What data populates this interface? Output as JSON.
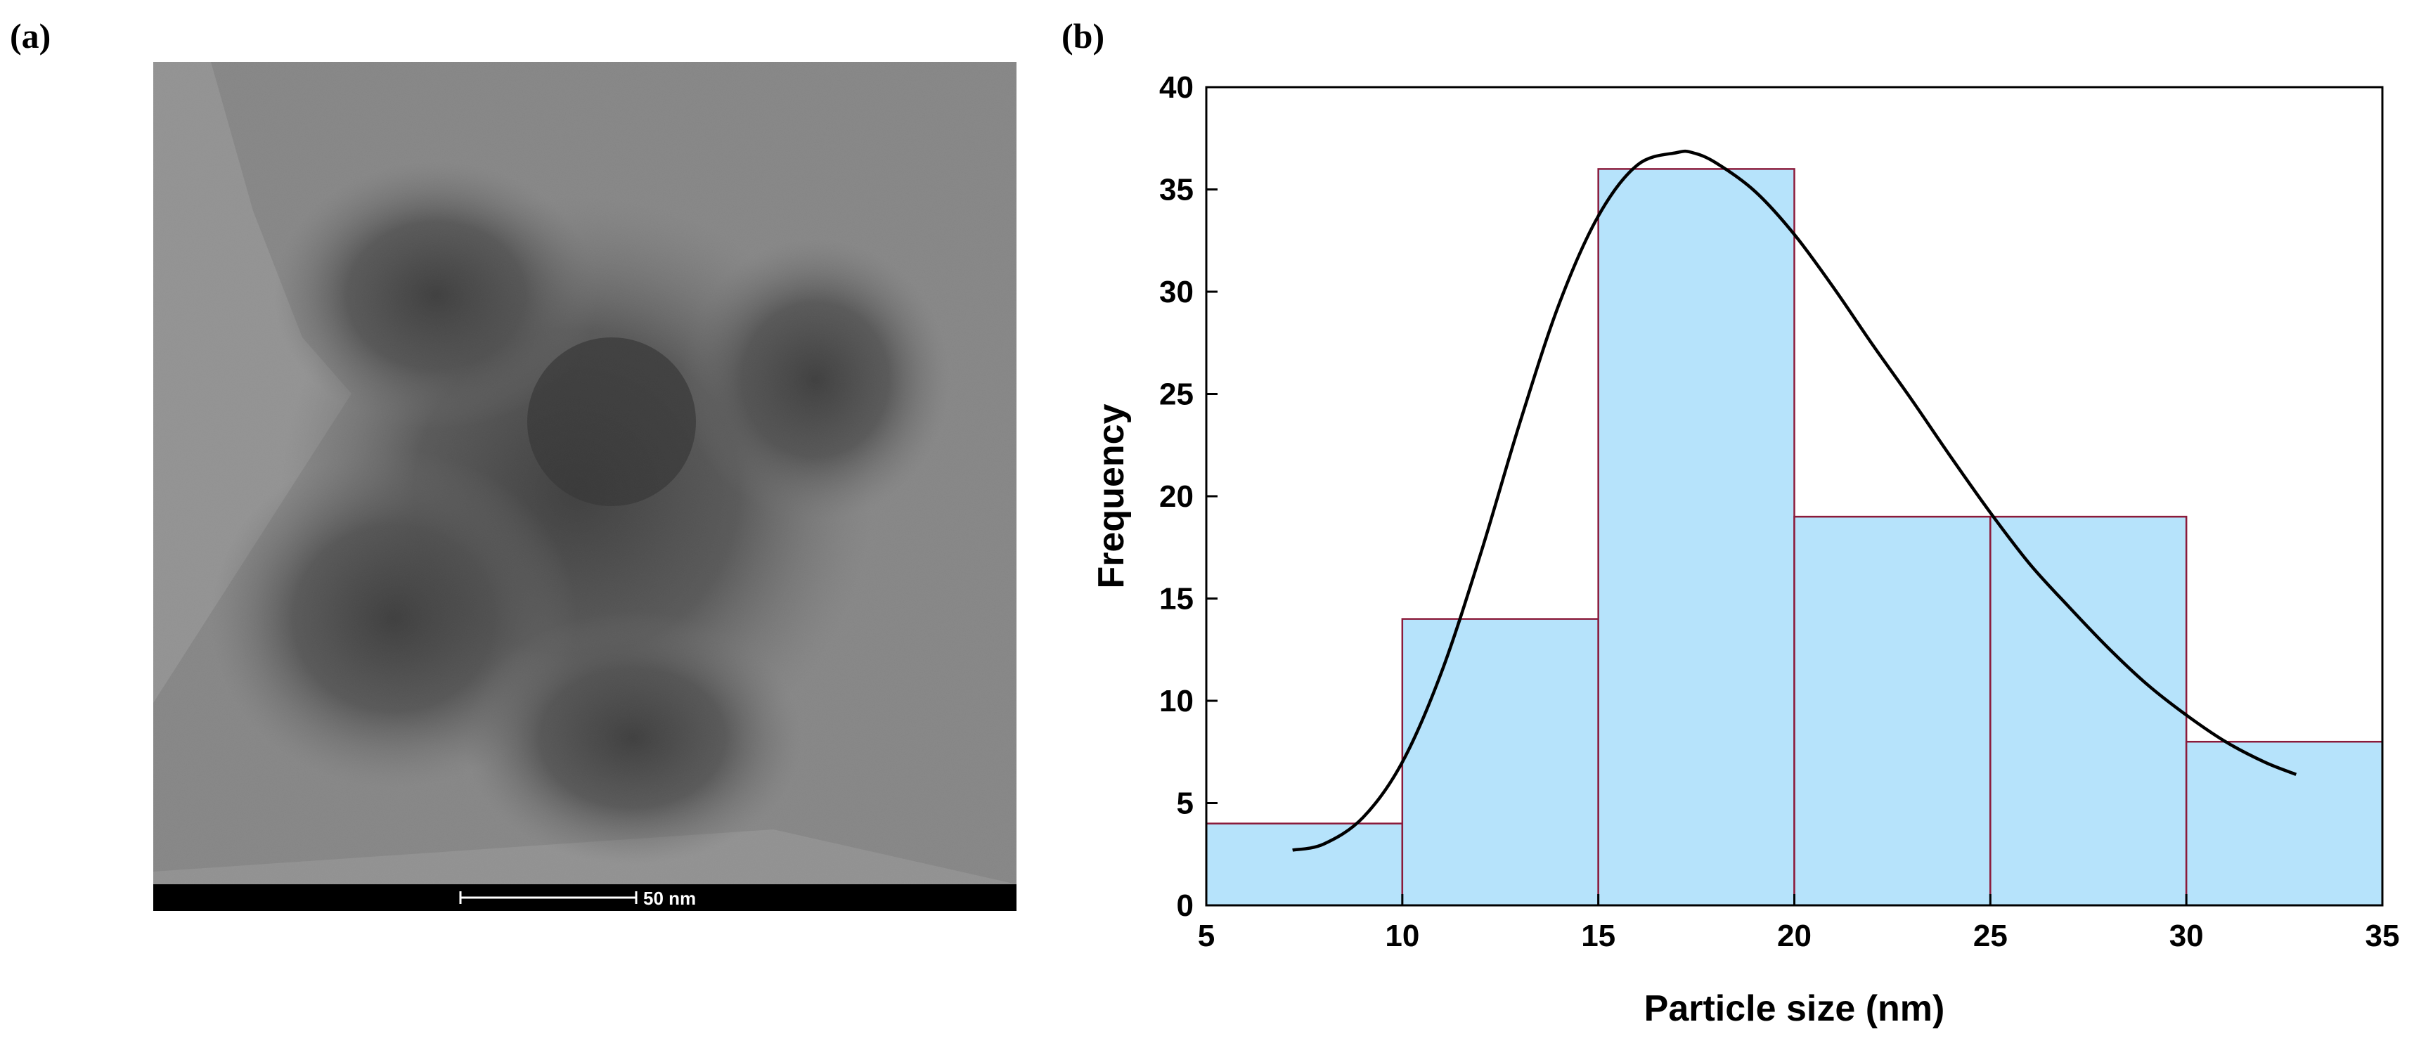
{
  "panels": {
    "a_label": "(a)",
    "b_label": "(b)"
  },
  "tem_image": {
    "scale_bar_text": "50 nm"
  },
  "colors": {
    "bar_fill": "#b6e3fb",
    "bar_edge": "#8b1a3a",
    "curve": "#000000",
    "axis": "#000000",
    "tem_background": "#8c8c8c",
    "scale_strip": "#000000"
  },
  "chart_data": {
    "type": "bar",
    "subtype": "histogram",
    "xlabel": "Particle size (nm)",
    "ylabel": "Frequency",
    "xlim": [
      5,
      35
    ],
    "ylim": [
      0,
      40
    ],
    "xticks": [
      5,
      10,
      15,
      20,
      25,
      30,
      35
    ],
    "yticks": [
      0,
      5,
      10,
      15,
      20,
      25,
      30,
      35,
      40
    ],
    "bins": [
      {
        "from": 5,
        "to": 10,
        "value": 4
      },
      {
        "from": 10,
        "to": 15,
        "value": 14
      },
      {
        "from": 15,
        "to": 20,
        "value": 36
      },
      {
        "from": 20,
        "to": 25,
        "value": 19
      },
      {
        "from": 25,
        "to": 30,
        "value": 19
      },
      {
        "from": 30,
        "to": 35,
        "value": 8
      }
    ],
    "fit_curve": {
      "type": "lognormal",
      "x": [
        7.2,
        8,
        9,
        10,
        11,
        12,
        13,
        14,
        15,
        16,
        17,
        17.4,
        18,
        19,
        20,
        21,
        22,
        23,
        24,
        25,
        26,
        27,
        28,
        29,
        30,
        31,
        32,
        32.8
      ],
      "y": [
        2.7,
        3.0,
        4.3,
        7.0,
        11.4,
        17.2,
        23.6,
        29.4,
        33.7,
        36.2,
        36.8,
        36.8,
        36.3,
        34.9,
        32.8,
        30.2,
        27.4,
        24.7,
        21.9,
        19.2,
        16.7,
        14.6,
        12.6,
        10.8,
        9.3,
        8.0,
        7.0,
        6.4
      ]
    },
    "grid": false,
    "legend": "none"
  }
}
